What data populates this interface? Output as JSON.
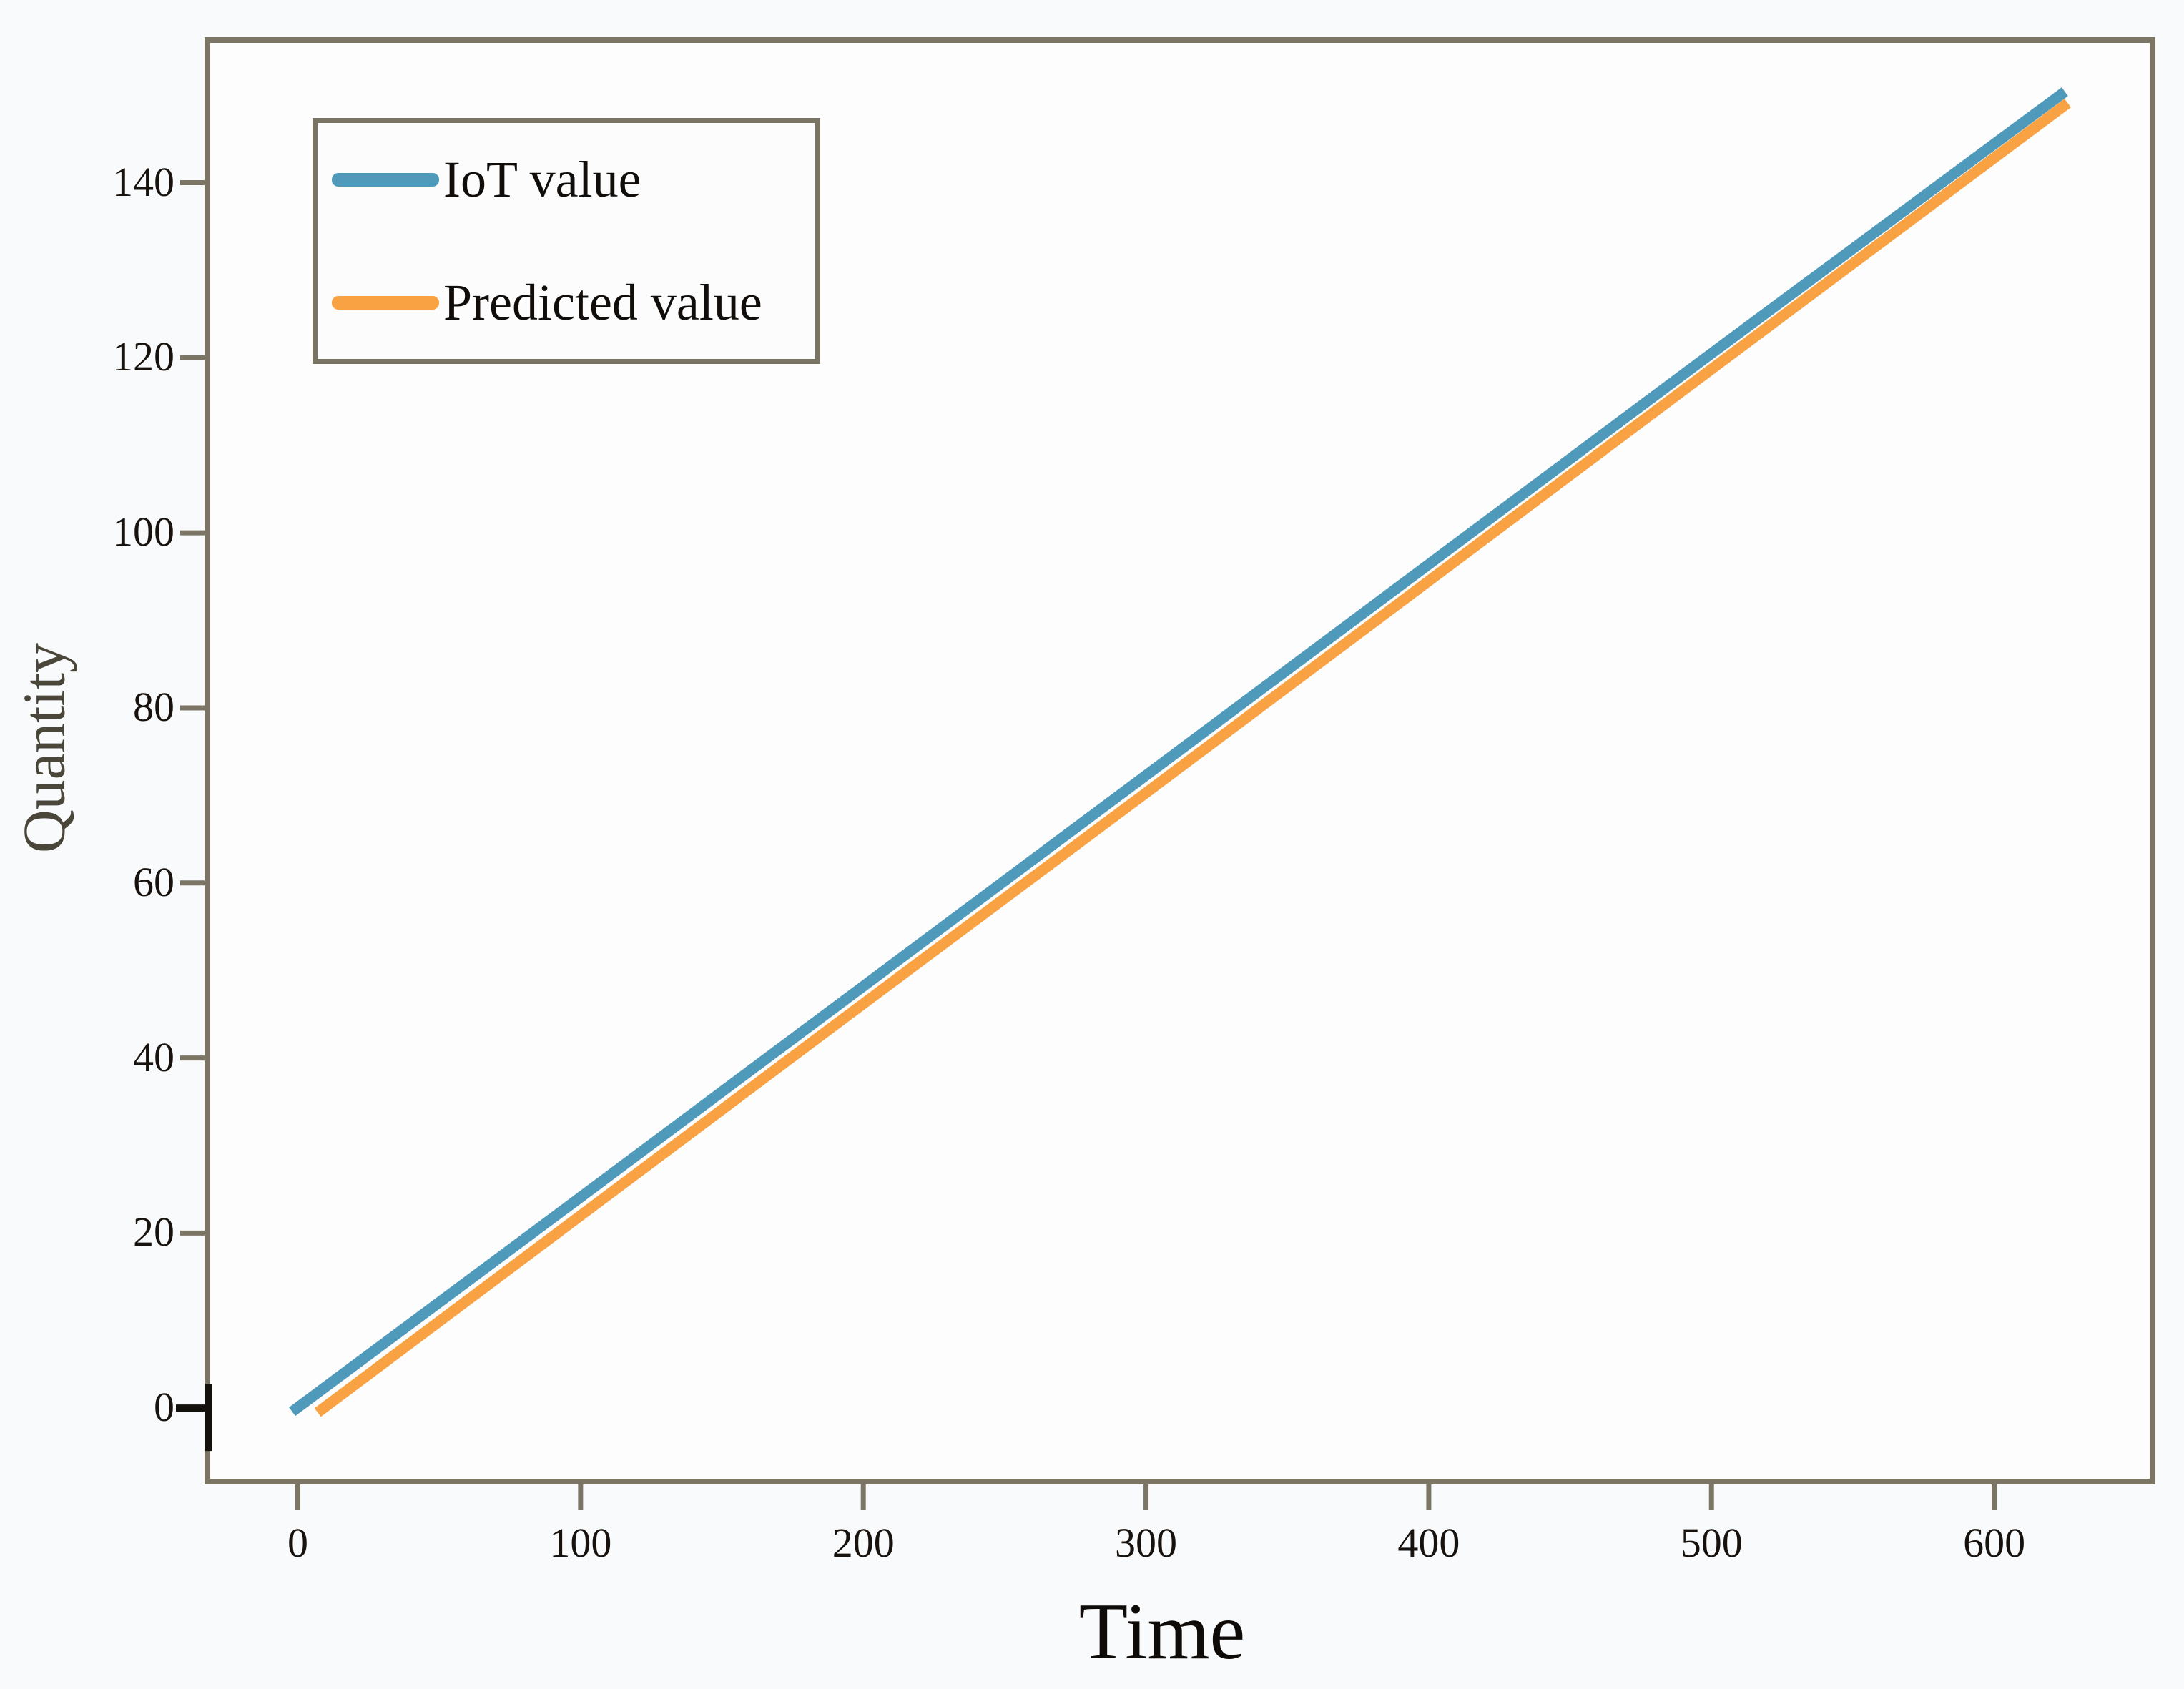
{
  "chart_data": {
    "type": "line",
    "title": "",
    "xlabel": "Time",
    "ylabel": "Quantity",
    "x_ticks": [
      0,
      100,
      200,
      300,
      400,
      500,
      600
    ],
    "y_ticks": [
      0,
      20,
      40,
      60,
      80,
      100,
      120,
      140
    ],
    "xlim": [
      -32,
      656
    ],
    "ylim": [
      -8.4,
      156.3
    ],
    "grid": false,
    "legend_position": "upper-left",
    "axis_color": "#7b7566",
    "tick_label_color": "#17120e",
    "xlabel_color": "#0f0b08",
    "ylabel_color": "#4a463a",
    "origin_tick_black": true,
    "origin_tick_color": "#14100c",
    "series": [
      {
        "name": "IoT value",
        "color": "#4f9aba",
        "points": [
          [
            -2,
            -0.4
          ],
          [
            100,
            24.1
          ],
          [
            200,
            48.2
          ],
          [
            300,
            72.3
          ],
          [
            400,
            96.4
          ],
          [
            500,
            120.5
          ],
          [
            625,
            150.4
          ]
        ]
      },
      {
        "name": "Predicted value",
        "color": "#f9a243",
        "points": [
          [
            7,
            -0.5
          ],
          [
            100,
            22.0
          ],
          [
            200,
            46.2
          ],
          [
            300,
            70.3
          ],
          [
            400,
            94.5
          ],
          [
            500,
            118.7
          ],
          [
            626,
            149.1
          ]
        ]
      }
    ]
  }
}
